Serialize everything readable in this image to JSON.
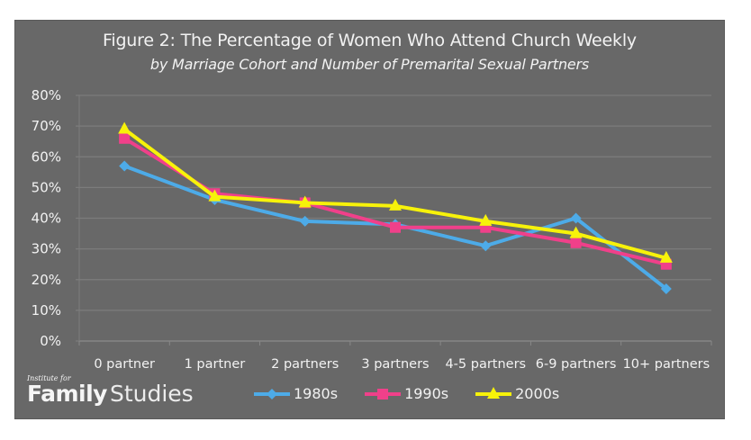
{
  "chart_data": {
    "type": "line",
    "title": "Figure 2: The Percentage of Women Who Attend Church Weekly",
    "subtitle": "by Marriage Cohort and Number of Premarital Sexual Partners",
    "xlabel": "",
    "ylabel": "",
    "categories": [
      "0 partner",
      "1 partner",
      "2 partners",
      "3 partners",
      "4-5 partners",
      "6-9 partners",
      "10+ partners"
    ],
    "ylim": [
      0,
      80
    ],
    "yticks": [
      0,
      10,
      20,
      30,
      40,
      50,
      60,
      70,
      80
    ],
    "ytick_labels": [
      "0%",
      "10%",
      "20%",
      "30%",
      "40%",
      "50%",
      "60%",
      "70%",
      "80%"
    ],
    "grid": true,
    "legend_position": "bottom",
    "series": [
      {
        "name": "1980s",
        "color": "#4dabe8",
        "marker": "diamond",
        "values": [
          57,
          46,
          39,
          38,
          31,
          40,
          17
        ]
      },
      {
        "name": "1990s",
        "color": "#f0408a",
        "marker": "square",
        "values": [
          66,
          48,
          45,
          37,
          37,
          32,
          25
        ]
      },
      {
        "name": "2000s",
        "color": "#f7f20a",
        "marker": "triangle",
        "values": [
          69,
          47,
          45,
          44,
          39,
          35,
          27
        ]
      }
    ]
  },
  "logo": {
    "small": "Institute for",
    "bold": "Family",
    "light": "Studies"
  },
  "colors": {
    "background": "#686868",
    "gridline": "#7c7c7c",
    "text": "#f2f2f2"
  }
}
